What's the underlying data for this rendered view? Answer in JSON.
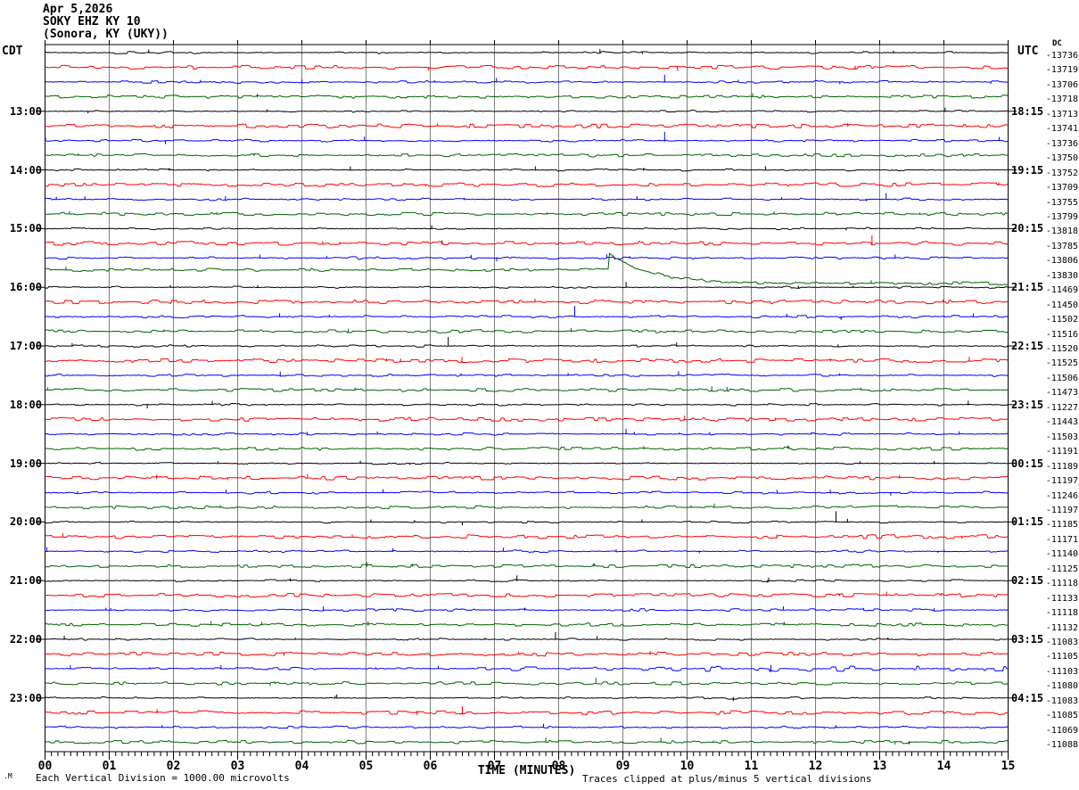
{
  "header": {
    "date": "Apr 5,2026",
    "station": "SOKY EHZ KY 10",
    "location": "(Sonora, KY (UKY))"
  },
  "axis": {
    "left_timezone": "CDT",
    "right_timezone": "UTC",
    "dc_column": "DC",
    "x_title": "TIME (MINUTES)",
    "minute_labels": [
      "00",
      "01",
      "02",
      "03",
      "04",
      "05",
      "06",
      "07",
      "08",
      "09",
      "10",
      "11",
      "12",
      "13",
      "14",
      "15"
    ],
    "footer_left": "Each Vertical Division = 1000.00 microvolts",
    "footer_right": "Traces clipped at plus/minus 5 vertical divisions",
    "corner_mark": ".M"
  },
  "chart_data": {
    "type": "helicorder",
    "title": "SOKY EHZ KY 10 (Sonora, KY (UKY)) Apr 5,2026",
    "minutes_per_line": 15,
    "x_axis": {
      "label": "TIME (MINUTES)",
      "range_minutes": [
        0,
        15
      ],
      "major_tick_every_min": 1,
      "minor_ticks_per_minute": 10
    },
    "grid_color": "#808080",
    "trace_colors": {
      "black": "#000000",
      "red": "#ff0000",
      "blue": "#0000ff",
      "green": "#006400"
    },
    "color_cycle": [
      "black",
      "red",
      "blue",
      "green"
    ],
    "left_hour_labels_cdt": [
      {
        "row": 5,
        "text": "13:00"
      },
      {
        "row": 9,
        "text": "14:00"
      },
      {
        "row": 13,
        "text": "15:00"
      },
      {
        "row": 17,
        "text": "16:00"
      },
      {
        "row": 21,
        "text": "17:00"
      },
      {
        "row": 25,
        "text": "18:00"
      },
      {
        "row": 29,
        "text": "19:00"
      },
      {
        "row": 33,
        "text": "20:00"
      },
      {
        "row": 37,
        "text": "21:00"
      },
      {
        "row": 41,
        "text": "22:00"
      },
      {
        "row": 45,
        "text": "23:00"
      }
    ],
    "right_utc_labels": [
      {
        "row": 5,
        "text": "18:15"
      },
      {
        "row": 9,
        "text": "19:15"
      },
      {
        "row": 13,
        "text": "20:15"
      },
      {
        "row": 17,
        "text": "21:15"
      },
      {
        "row": 21,
        "text": "22:15"
      },
      {
        "row": 25,
        "text": "23:15"
      },
      {
        "row": 29,
        "text": "00:15"
      },
      {
        "row": 33,
        "text": "01:15"
      },
      {
        "row": 37,
        "text": "02:15"
      },
      {
        "row": 41,
        "text": "03:15"
      },
      {
        "row": 45,
        "text": "04:15"
      }
    ],
    "rows": [
      {
        "row": 1,
        "color": "black",
        "dc": -13736
      },
      {
        "row": 2,
        "color": "red",
        "dc": -13719
      },
      {
        "row": 3,
        "color": "blue",
        "dc": -13706
      },
      {
        "row": 4,
        "color": "green",
        "dc": -13718
      },
      {
        "row": 5,
        "color": "black",
        "dc": -13713
      },
      {
        "row": 6,
        "color": "red",
        "dc": -13741
      },
      {
        "row": 7,
        "color": "blue",
        "dc": -13736
      },
      {
        "row": 8,
        "color": "green",
        "dc": -13750
      },
      {
        "row": 9,
        "color": "black",
        "dc": -13752
      },
      {
        "row": 10,
        "color": "red",
        "dc": -13709
      },
      {
        "row": 11,
        "color": "blue",
        "dc": -13755
      },
      {
        "row": 12,
        "color": "green",
        "dc": -13799
      },
      {
        "row": 13,
        "color": "black",
        "dc": -13818
      },
      {
        "row": 14,
        "color": "red",
        "dc": -13785
      },
      {
        "row": 15,
        "color": "blue",
        "dc": -13806
      },
      {
        "row": 16,
        "color": "green",
        "dc": -13830
      },
      {
        "row": 17,
        "color": "black",
        "dc": -11469
      },
      {
        "row": 18,
        "color": "red",
        "dc": -11450
      },
      {
        "row": 19,
        "color": "blue",
        "dc": -11502
      },
      {
        "row": 20,
        "color": "green",
        "dc": -11516
      },
      {
        "row": 21,
        "color": "black",
        "dc": -11520
      },
      {
        "row": 22,
        "color": "red",
        "dc": -11525
      },
      {
        "row": 23,
        "color": "blue",
        "dc": -11506
      },
      {
        "row": 24,
        "color": "green",
        "dc": -11473
      },
      {
        "row": 25,
        "color": "black",
        "dc": -11227
      },
      {
        "row": 26,
        "color": "red",
        "dc": -11443
      },
      {
        "row": 27,
        "color": "blue",
        "dc": -11503
      },
      {
        "row": 28,
        "color": "green",
        "dc": -11191
      },
      {
        "row": 29,
        "color": "black",
        "dc": -11189
      },
      {
        "row": 30,
        "color": "red",
        "dc": -11197
      },
      {
        "row": 31,
        "color": "blue",
        "dc": -11246
      },
      {
        "row": 32,
        "color": "green",
        "dc": -11197
      },
      {
        "row": 33,
        "color": "black",
        "dc": -11185
      },
      {
        "row": 34,
        "color": "red",
        "dc": -11171
      },
      {
        "row": 35,
        "color": "blue",
        "dc": -11140
      },
      {
        "row": 36,
        "color": "green",
        "dc": -11125
      },
      {
        "row": 37,
        "color": "black",
        "dc": -11118
      },
      {
        "row": 38,
        "color": "red",
        "dc": -11133
      },
      {
        "row": 39,
        "color": "blue",
        "dc": -11118
      },
      {
        "row": 40,
        "color": "green",
        "dc": -11132
      },
      {
        "row": 41,
        "color": "black",
        "dc": -11083
      },
      {
        "row": 42,
        "color": "red",
        "dc": -11105
      },
      {
        "row": 43,
        "color": "blue",
        "dc": -11103
      },
      {
        "row": 44,
        "color": "green",
        "dc": -11080
      },
      {
        "row": 45,
        "color": "black",
        "dc": -11083
      },
      {
        "row": 46,
        "color": "red",
        "dc": -11085
      },
      {
        "row": 47,
        "color": "blue",
        "dc": -11069
      },
      {
        "row": 48,
        "color": "green",
        "dc": -11088
      }
    ],
    "noise_profiles": {
      "black": {
        "amp": 1.1,
        "density": 0.3
      },
      "red": {
        "amp": 2.0,
        "density": 0.8
      },
      "blue": {
        "amp": 1.3,
        "density": 0.45
      },
      "green": {
        "amp": 1.6,
        "density": 0.7
      }
    },
    "events": [
      {
        "row": 16,
        "type": "step_decay",
        "t": 8.78,
        "pre": -3,
        "peak": -21,
        "settle": 12,
        "tau": 0.65,
        "note": "large transient with slow exponential recovery on 15:45 CDT green trace; DC level shifts from -13830 to -11469 on following line"
      },
      {
        "row": 3,
        "type": "spike",
        "t": 9.65,
        "up": 8
      },
      {
        "row": 7,
        "type": "spike",
        "t": 9.65,
        "up": 10
      },
      {
        "row": 11,
        "type": "spike",
        "t": 13.1,
        "up": 7
      },
      {
        "row": 14,
        "type": "spike",
        "t": 12.88,
        "up": 9
      },
      {
        "row": 17,
        "type": "spike",
        "t": 9.05,
        "up": 6
      },
      {
        "row": 19,
        "type": "spike",
        "t": 8.25,
        "up": 12
      },
      {
        "row": 21,
        "type": "spike",
        "t": 6.28,
        "up": 10
      },
      {
        "row": 27,
        "type": "spike",
        "t": 9.05,
        "up": 6
      },
      {
        "row": 33,
        "type": "spike",
        "t": 12.32,
        "up": 12
      },
      {
        "row": 37,
        "type": "spike",
        "t": 7.35,
        "up": 6
      },
      {
        "row": 41,
        "type": "spike",
        "t": 7.95,
        "up": 8
      },
      {
        "row": 43,
        "type": "noise_burst",
        "t": 7.0,
        "t_end": 15.0,
        "amp": 2.2
      },
      {
        "row": 44,
        "type": "spike",
        "t": 8.58,
        "up": 6
      },
      {
        "row": 46,
        "type": "spike",
        "t": 6.5,
        "up": 7
      },
      {
        "row": 48,
        "type": "spike",
        "t": 7.8,
        "up": 5
      }
    ]
  }
}
